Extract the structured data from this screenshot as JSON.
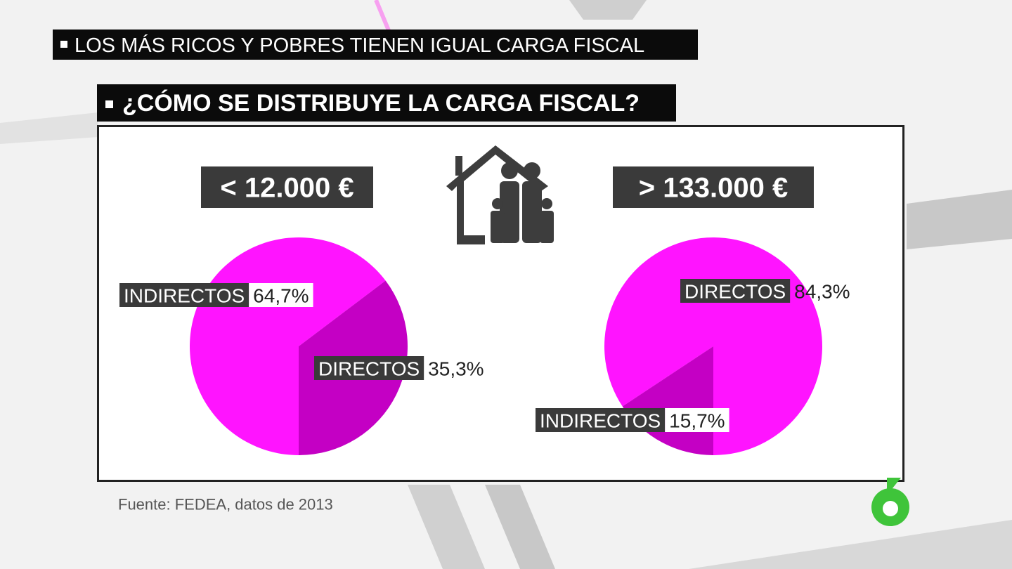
{
  "header": {
    "headline": "LOS MÁS RICOS Y POBRES TIENEN IGUAL CARGA FISCAL",
    "question": "¿CÓMO SE DISTRIBUYE LA CARGA FISCAL?"
  },
  "chart_data": [
    {
      "type": "pie",
      "title": "< 12.000 €",
      "categories": [
        "INDIRECTOS",
        "DIRECTOS"
      ],
      "values": [
        64.7,
        35.3
      ],
      "value_labels": [
        "64,7%",
        "35,3%"
      ],
      "colors": [
        "#ff14ff",
        "#c400c4"
      ]
    },
    {
      "type": "pie",
      "title": "> 133.000 €",
      "categories": [
        "DIRECTOS",
        "INDIRECTOS"
      ],
      "values": [
        84.3,
        15.7
      ],
      "value_labels": [
        "84,3%",
        "15,7%"
      ],
      "colors": [
        "#ff14ff",
        "#c400c4"
      ]
    }
  ],
  "source": "Fuente: FEDEA, datos de 2013"
}
